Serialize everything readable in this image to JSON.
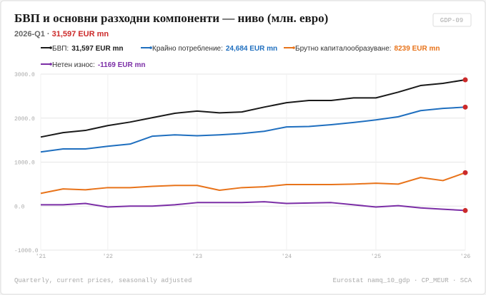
{
  "badge": "GDP-09",
  "chart_data": {
    "type": "line",
    "title": "БВП и основни разходни компоненти — ниво (млн. евро)",
    "subtitle_period": "2026-Q1 ·",
    "subtitle_value": "31,597 EUR mn",
    "categories": [
      "'21",
      null,
      null,
      "'22",
      null,
      null,
      null,
      "'23",
      null,
      null,
      null,
      "'24",
      null,
      null,
      null,
      "'25",
      null,
      null,
      null,
      "'26"
    ],
    "series": [
      {
        "name": "БВП:",
        "legend_value": "31,597 EUR mn",
        "color": "#1a1a1a",
        "values": [
          1570,
          1670,
          1720,
          1830,
          1910,
          2010,
          2110,
          2160,
          2120,
          2140,
          2250,
          2350,
          2400,
          2400,
          2460,
          2460,
          2590,
          2740,
          2790,
          2870
        ]
      },
      {
        "name": "Крайно потребление:",
        "legend_value": "24,684 EUR mn",
        "color": "#1f6fbf",
        "values": [
          1230,
          1300,
          1300,
          1360,
          1410,
          1590,
          1620,
          1600,
          1620,
          1650,
          1700,
          1800,
          1810,
          1850,
          1900,
          1960,
          2030,
          2170,
          2220,
          2250
        ]
      },
      {
        "name": "Брутно капиталообразуване:",
        "legend_value": "8239 EUR mn",
        "color": "#e8731a",
        "values": [
          290,
          390,
          370,
          420,
          420,
          450,
          470,
          470,
          360,
          420,
          440,
          490,
          490,
          490,
          500,
          520,
          500,
          650,
          580,
          760
        ]
      },
      {
        "name": "Нетен износ:",
        "legend_value": "-1169 EUR mn",
        "color": "#7b2ea6",
        "values": [
          30,
          30,
          60,
          -20,
          0,
          0,
          30,
          80,
          80,
          80,
          100,
          60,
          70,
          80,
          30,
          -20,
          10,
          -40,
          -70,
          -100
        ]
      }
    ],
    "end_marker_color": "#cc2a2a",
    "ylim": [
      -1000,
      3000
    ],
    "yticks": [
      {
        "value": -1000,
        "label": "-1000.0"
      },
      {
        "value": 0,
        "label": "0.0"
      },
      {
        "value": 1000,
        "label": "1000.0"
      },
      {
        "value": 2000,
        "label": "2000.0"
      },
      {
        "value": 3000,
        "label": "3000.0"
      }
    ],
    "grid": true,
    "footnote": "Quarterly, current prices, seasonally adjusted",
    "source": "Eurostat namq_10_gdp · CP_MEUR · SCA"
  }
}
